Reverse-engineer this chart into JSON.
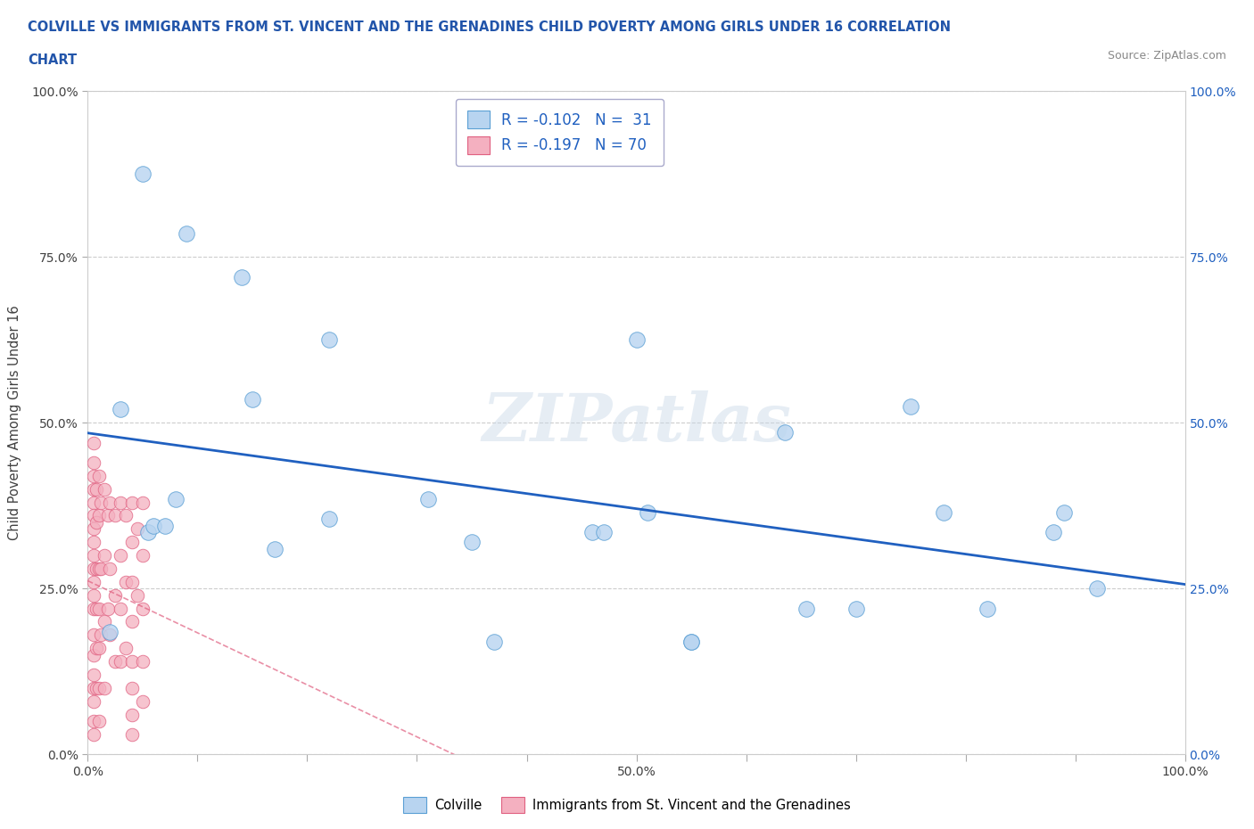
{
  "title_line1": "COLVILLE VS IMMIGRANTS FROM ST. VINCENT AND THE GRENADINES CHILD POVERTY AMONG GIRLS UNDER 16 CORRELATION",
  "title_line2": "CHART",
  "source_text": "Source: ZipAtlas.com",
  "ylabel": "Child Poverty Among Girls Under 16",
  "xlim": [
    0.0,
    1.0
  ],
  "ylim": [
    0.0,
    1.0
  ],
  "xtick_vals": [
    0.0,
    0.1,
    0.2,
    0.3,
    0.4,
    0.5,
    0.6,
    0.7,
    0.8,
    0.9,
    1.0
  ],
  "xtick_labels": [
    "0.0%",
    "",
    "",
    "",
    "",
    "50.0%",
    "",
    "",
    "",
    "",
    "100.0%"
  ],
  "ytick_vals": [
    0.0,
    0.25,
    0.5,
    0.75,
    1.0
  ],
  "ytick_labels": [
    "0.0%",
    "25.0%",
    "50.0%",
    "75.0%",
    "100.0%"
  ],
  "right_ytick_vals": [
    0.0,
    0.25,
    0.5,
    0.75,
    1.0
  ],
  "right_ytick_labels": [
    "0.0%",
    "25.0%",
    "50.0%",
    "75.0%",
    "100.0%"
  ],
  "colville_color": "#b8d4f0",
  "colville_edge": "#5a9fd4",
  "svg_color": "#f4b0c0",
  "svg_edge": "#e06080",
  "trend_colville_color": "#2060c0",
  "trend_svg_color": "#e06080",
  "legend_R_colville": "R = -0.102",
  "legend_N_colville": "N =  31",
  "legend_R_svg": "R = -0.197",
  "legend_N_svg": "N = 70",
  "watermark": "ZIPatlas",
  "colville_x": [
    0.02,
    0.05,
    0.09,
    0.14,
    0.03,
    0.055,
    0.06,
    0.07,
    0.08,
    0.15,
    0.17,
    0.31,
    0.35,
    0.37,
    0.46,
    0.47,
    0.5,
    0.51,
    0.635,
    0.655,
    0.7,
    0.75,
    0.78,
    0.82,
    0.88,
    0.89,
    0.92,
    0.22,
    0.22,
    0.55,
    0.55
  ],
  "colville_y": [
    0.185,
    0.875,
    0.785,
    0.72,
    0.52,
    0.335,
    0.345,
    0.345,
    0.385,
    0.535,
    0.31,
    0.385,
    0.32,
    0.17,
    0.335,
    0.335,
    0.625,
    0.365,
    0.485,
    0.22,
    0.22,
    0.525,
    0.365,
    0.22,
    0.335,
    0.365,
    0.25,
    0.625,
    0.355,
    0.17,
    0.17
  ],
  "svg_x": [
    0.005,
    0.005,
    0.005,
    0.005,
    0.005,
    0.005,
    0.005,
    0.005,
    0.005,
    0.005,
    0.005,
    0.005,
    0.005,
    0.005,
    0.005,
    0.005,
    0.005,
    0.005,
    0.005,
    0.005,
    0.008,
    0.008,
    0.008,
    0.008,
    0.008,
    0.008,
    0.01,
    0.01,
    0.01,
    0.01,
    0.01,
    0.01,
    0.01,
    0.012,
    0.012,
    0.012,
    0.015,
    0.015,
    0.015,
    0.015,
    0.018,
    0.018,
    0.02,
    0.02,
    0.02,
    0.025,
    0.025,
    0.025,
    0.03,
    0.03,
    0.03,
    0.03,
    0.035,
    0.035,
    0.035,
    0.04,
    0.04,
    0.04,
    0.04,
    0.04,
    0.04,
    0.04,
    0.04,
    0.045,
    0.045,
    0.05,
    0.05,
    0.05,
    0.05,
    0.05
  ],
  "svg_y": [
    0.47,
    0.44,
    0.42,
    0.4,
    0.38,
    0.36,
    0.34,
    0.32,
    0.3,
    0.28,
    0.26,
    0.24,
    0.22,
    0.18,
    0.15,
    0.12,
    0.1,
    0.08,
    0.05,
    0.03,
    0.4,
    0.35,
    0.28,
    0.22,
    0.16,
    0.1,
    0.42,
    0.36,
    0.28,
    0.22,
    0.16,
    0.1,
    0.05,
    0.38,
    0.28,
    0.18,
    0.4,
    0.3,
    0.2,
    0.1,
    0.36,
    0.22,
    0.38,
    0.28,
    0.18,
    0.36,
    0.24,
    0.14,
    0.38,
    0.3,
    0.22,
    0.14,
    0.36,
    0.26,
    0.16,
    0.38,
    0.32,
    0.26,
    0.2,
    0.14,
    0.1,
    0.06,
    0.03,
    0.34,
    0.24,
    0.38,
    0.3,
    0.22,
    0.14,
    0.08
  ]
}
